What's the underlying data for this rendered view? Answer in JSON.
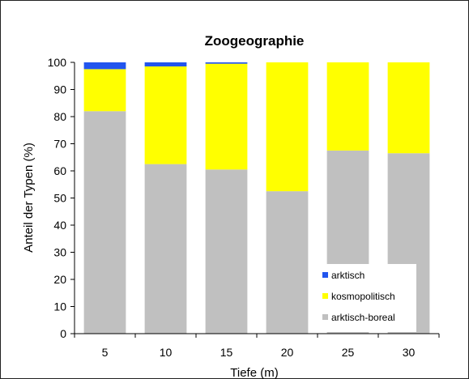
{
  "chart_data": {
    "type": "bar",
    "stacked": true,
    "title": "Zoogeographie",
    "xlabel": "Tiefe (m)",
    "ylabel": "Anteil der Typen (%)",
    "ylim": [
      0,
      100
    ],
    "yticks": [
      "0",
      "10",
      "20",
      "30",
      "40",
      "50",
      "60",
      "70",
      "80",
      "90",
      "100"
    ],
    "categories": [
      "5",
      "10",
      "15",
      "20",
      "25",
      "30"
    ],
    "series": [
      {
        "name": "arktisch-boreal",
        "color": "#c0c0c0",
        "values": [
          82,
          62.5,
          60.5,
          52.5,
          67.5,
          66.5
        ]
      },
      {
        "name": "kosmopolitisch",
        "color": "#ffff00",
        "values": [
          15.5,
          36,
          39,
          47.5,
          32.5,
          33.5
        ]
      },
      {
        "name": "arktisch",
        "color": "#2255ee",
        "values": [
          2.5,
          1.5,
          0.5,
          0,
          0,
          0
        ]
      }
    ],
    "legend": {
      "position": "bottom-right",
      "order": [
        "arktisch",
        "kosmopolitisch",
        "arktisch-boreal"
      ]
    },
    "grid": false
  }
}
